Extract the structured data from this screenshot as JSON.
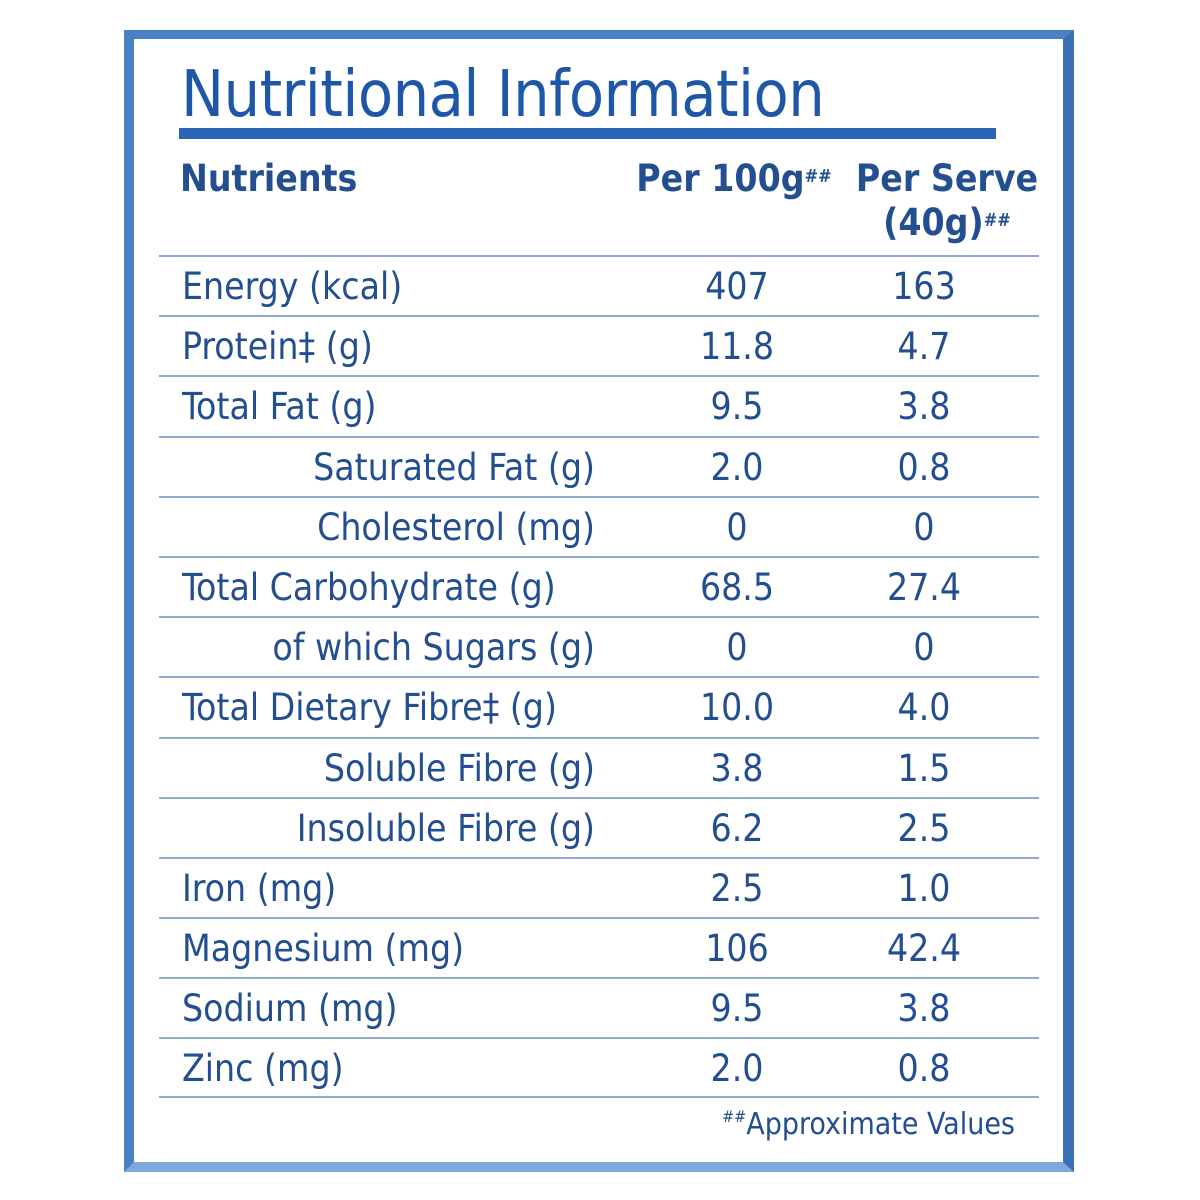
{
  "title": "Nutritional Information",
  "headers": {
    "nutrients": "Nutrients",
    "per_100g": "Per 100g",
    "per_100g_mark": "##",
    "per_serve_line1": "Per Serve",
    "per_serve_line2": "(40g)",
    "per_serve_mark": "##"
  },
  "rows": [
    {
      "name": "Energy (kcal)",
      "per_100g": "407",
      "per_serve": "163"
    },
    {
      "name": "Protein‡ (g)",
      "per_100g": "11.8",
      "per_serve": "4.7"
    },
    {
      "name": "Total Fat (g)",
      "per_100g": "9.5",
      "per_serve": "3.8"
    },
    {
      "name": "Saturated Fat (g)",
      "per_100g": "2.0",
      "per_serve": "0.8"
    },
    {
      "name": "Cholesterol (mg)",
      "per_100g": "0",
      "per_serve": "0"
    },
    {
      "name": "Total Carbohydrate (g)",
      "per_100g": "68.5",
      "per_serve": "27.4"
    },
    {
      "name": "of which Sugars (g)",
      "per_100g": "0",
      "per_serve": "0"
    },
    {
      "name": "Total Dietary Fibre‡ (g)",
      "per_100g": "10.0",
      "per_serve": "4.0"
    },
    {
      "name": "Soluble Fibre (g)",
      "per_100g": "3.8",
      "per_serve": "1.5"
    },
    {
      "name": "Insoluble Fibre (g)",
      "per_100g": "6.2",
      "per_serve": "2.5"
    },
    {
      "name": "Iron (mg)",
      "per_100g": "2.5",
      "per_serve": "1.0"
    },
    {
      "name": "Magnesium (mg)",
      "per_100g": "106",
      "per_serve": "42.4"
    },
    {
      "name": "Sodium (mg)",
      "per_100g": "9.5",
      "per_serve": "3.8"
    },
    {
      "name": "Zinc (mg)",
      "per_100g": "2.0",
      "per_serve": "0.8"
    }
  ],
  "footnote": {
    "mark": "##",
    "text": "Approximate Values"
  },
  "colors": {
    "border": "#4a80c6",
    "title": "#1f57a8",
    "text": "#234f90",
    "rule": "#8fa9cf"
  }
}
